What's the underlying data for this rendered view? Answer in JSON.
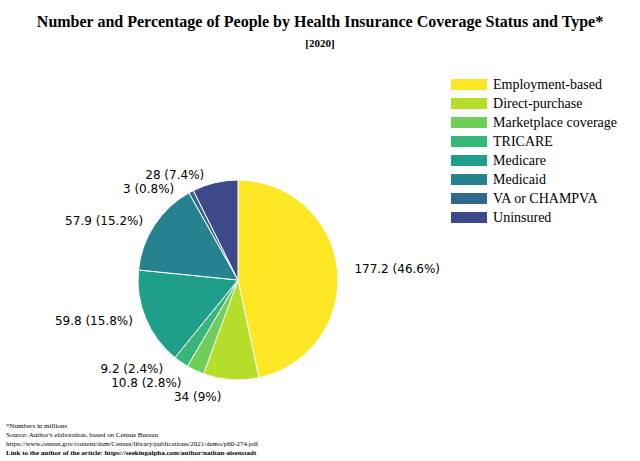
{
  "chart_data": {
    "type": "pie",
    "title": "Number and Percentage of People by Health Insurance Coverage Status and Type*",
    "subtitle": "[2020]",
    "categories": [
      "Employment-based",
      "Direct-purchase",
      "Marketplace coverage",
      "TRICARE",
      "Medicare",
      "Medicaid",
      "VA or CHAMPVA",
      "Uninsured"
    ],
    "values": [
      177.2,
      34,
      10.8,
      9.2,
      59.8,
      57.9,
      3,
      28
    ],
    "value_labels": [
      "177.2 (46.6%)",
      "34 (9%)",
      "10.8 (2.8%)",
      "9.2 (2.4%)",
      "59.8 (15.8%)",
      "57.9 (15.2%)",
      "3 (0.8%)",
      "28 (7.4%)"
    ],
    "colors": [
      "#fde725",
      "#b5de2b",
      "#6ece58",
      "#35b779",
      "#1f9e89",
      "#26828e",
      "#31688e",
      "#3e4989"
    ],
    "legend": "upper right",
    "data_labels": true,
    "annotations": [
      "*Numbers in millions",
      "Source: Author's elaboration, based on Census Bureau",
      "https://www.census.gov/content/dam/Census/library/publications/2021/demo/p60-274.pdf",
      "Link to the author of the article: https://seekingalpha.com/author/nathan-aisenstadt"
    ]
  }
}
